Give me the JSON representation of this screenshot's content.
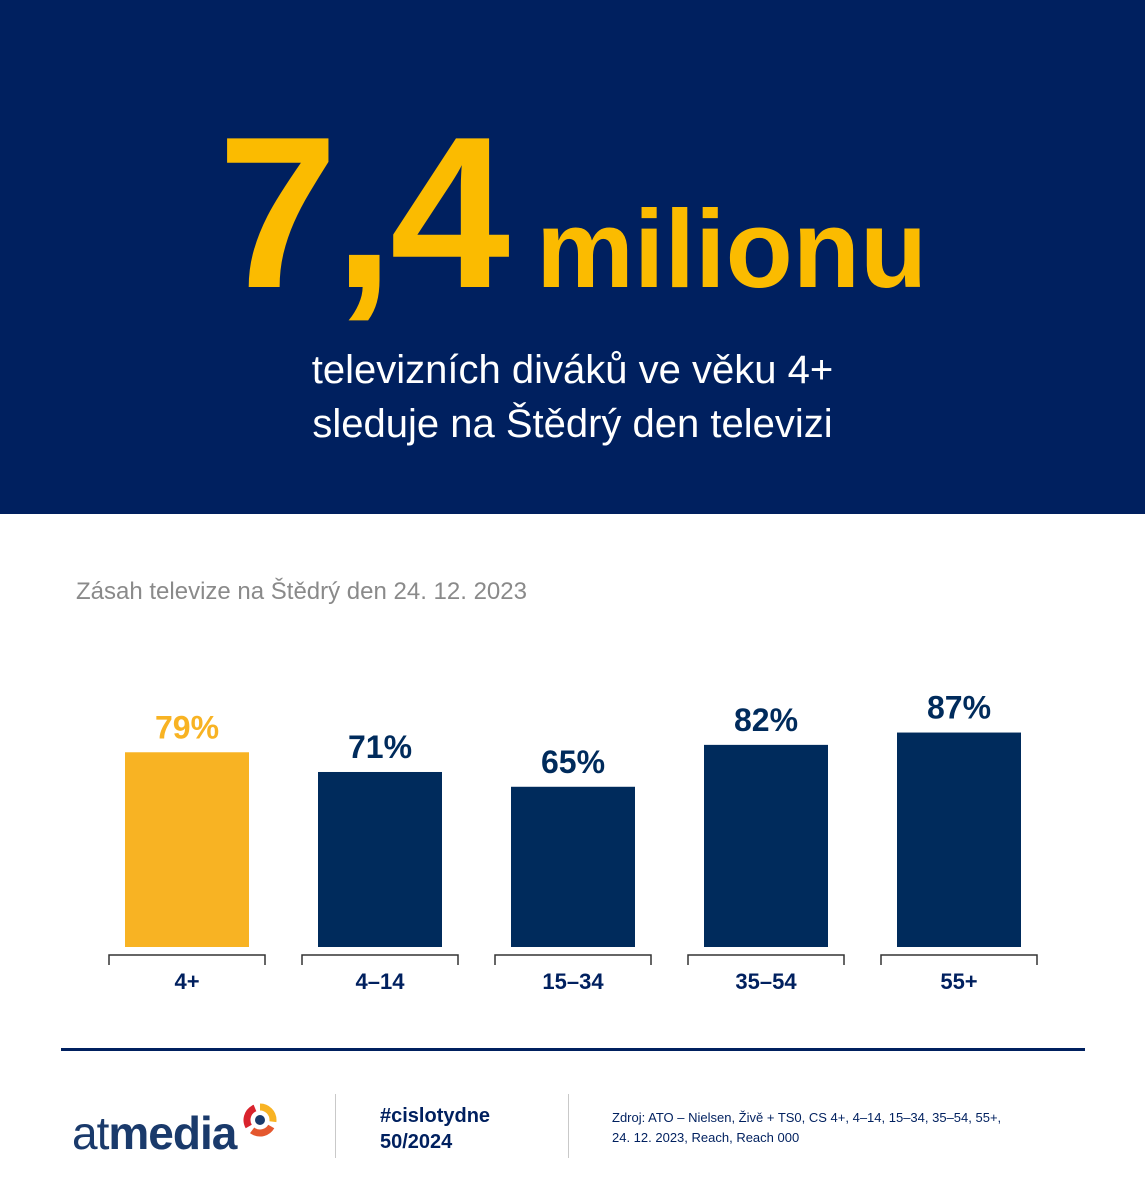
{
  "headline": {
    "number": "7,4",
    "word": "milionu"
  },
  "subtitle": {
    "line1": "televizních diváků ve věku 4+",
    "line2": "sleduje na Štědrý den televizi"
  },
  "colors": {
    "navy": "#00205f",
    "bar_navy": "#002b5c",
    "highlight": "#f8b323",
    "headline_yellow": "#fbbb00"
  },
  "chart_data": {
    "type": "bar",
    "title": "Zásah televize na Štědrý den 24. 12. 2023",
    "categories": [
      "4+",
      "4–14",
      "15–34",
      "35–54",
      "55+"
    ],
    "values": [
      79,
      71,
      65,
      82,
      87
    ],
    "labels": [
      "79%",
      "71%",
      "65%",
      "82%",
      "87%"
    ],
    "highlight_index": 0,
    "ylim": [
      0,
      100
    ],
    "grid": false
  },
  "footer": {
    "logo_light": "at",
    "logo_bold": "media",
    "hashtag": "#cislotydne",
    "issue": "50/2024",
    "source_line1": "Zdroj: ATO – Nielsen, Živě + TS0, CS 4+, 4–14, 15–34, 35–54, 55+,",
    "source_line2": "24. 12. 2023, Reach, Reach 000"
  }
}
